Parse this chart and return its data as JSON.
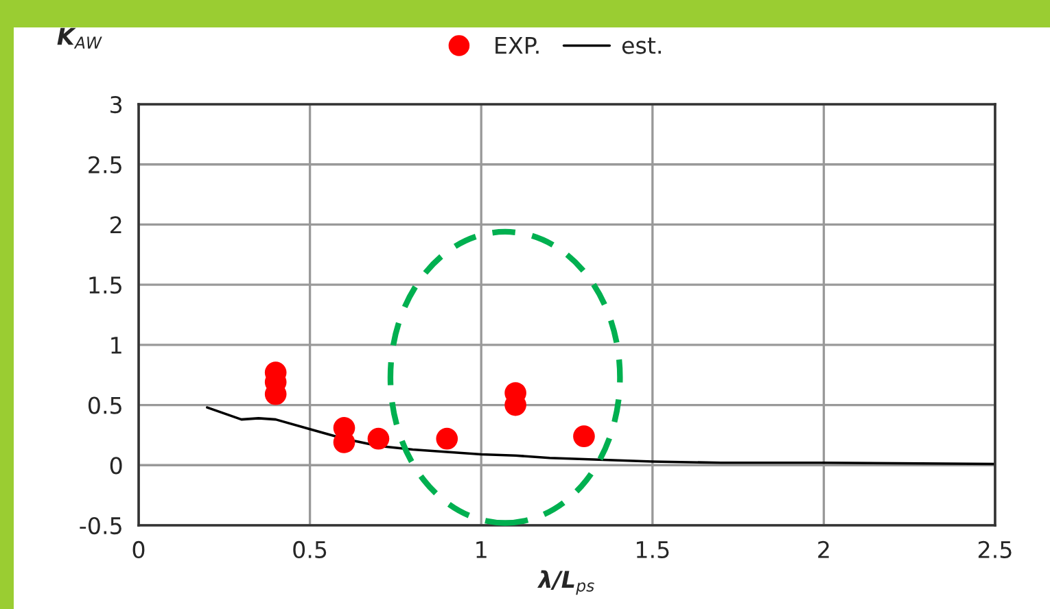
{
  "chart_data": {
    "type": "scatter",
    "xlabel": "λ/L$_{ps}$",
    "ylabel": "K$_{AW}$",
    "xlim": [
      0,
      2.5
    ],
    "xticks": [
      0,
      0.5,
      1,
      1.5,
      2,
      2.5
    ],
    "ylim": [
      -0.5,
      3
    ],
    "yticks": [
      -0.5,
      0,
      0.5,
      1,
      1.5,
      2,
      2.5,
      3
    ],
    "grid": true,
    "legend": "top",
    "series": [
      {
        "name": "EXP.",
        "color": "#ff0000",
        "marker": "circle",
        "x": [
          0.4,
          0.4,
          0.4,
          0.6,
          0.6,
          0.7,
          0.9,
          1.1,
          1.1,
          1.3
        ],
        "values": [
          0.77,
          0.69,
          0.59,
          0.31,
          0.19,
          0.22,
          0.22,
          0.6,
          0.5,
          0.24
        ]
      },
      {
        "name": "est.",
        "type": "line",
        "color": "#000000",
        "marker": "none",
        "x": [
          0.2,
          0.3,
          0.35,
          0.4,
          0.5,
          0.6,
          0.7,
          0.8,
          0.9,
          1.0,
          1.1,
          1.2,
          1.3,
          1.4,
          1.5,
          1.7,
          2.0,
          2.5
        ],
        "values": [
          0.48,
          0.38,
          0.39,
          0.38,
          0.3,
          0.22,
          0.16,
          0.13,
          0.11,
          0.09,
          0.08,
          0.06,
          0.05,
          0.04,
          0.03,
          0.02,
          0.02,
          0.01
        ]
      }
    ]
  }
}
